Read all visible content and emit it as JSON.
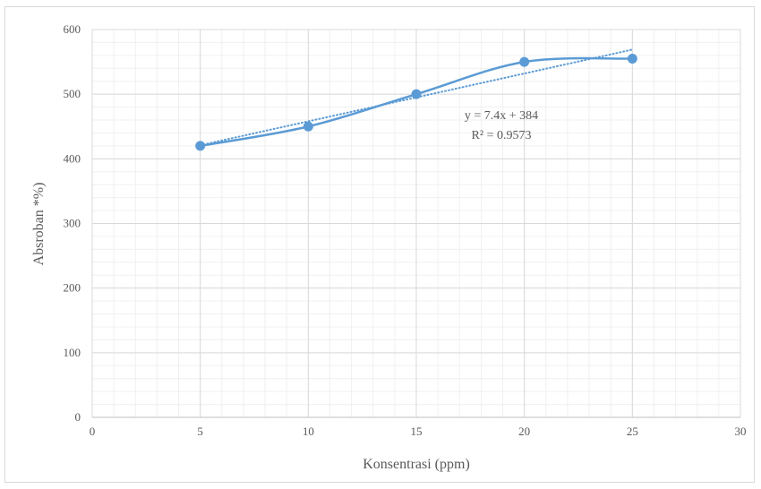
{
  "chart_data": {
    "type": "scatter",
    "xlabel": "Konsentrasi (ppm)",
    "ylabel": "Absroban *%)",
    "xlim": [
      0,
      30
    ],
    "ylim": [
      0,
      600
    ],
    "x_ticks": [
      0,
      5,
      10,
      15,
      20,
      25,
      30
    ],
    "y_ticks": [
      0,
      100,
      200,
      300,
      400,
      500,
      600
    ],
    "grid": "major and minor",
    "legend": "none",
    "series": [
      {
        "x": [
          5,
          10,
          15,
          20,
          25
        ],
        "y": [
          420,
          450,
          500,
          550,
          555
        ],
        "line": "smooth",
        "color": "#5B9BD5"
      }
    ],
    "trendline": {
      "type": "linear",
      "slope": 7.4,
      "intercept": 384,
      "x_range": [
        5,
        25
      ],
      "style": "dotted",
      "color": "#5B9BD5",
      "equation": "y = 7.4x + 384",
      "r_squared": "R² = 0.9573"
    }
  }
}
